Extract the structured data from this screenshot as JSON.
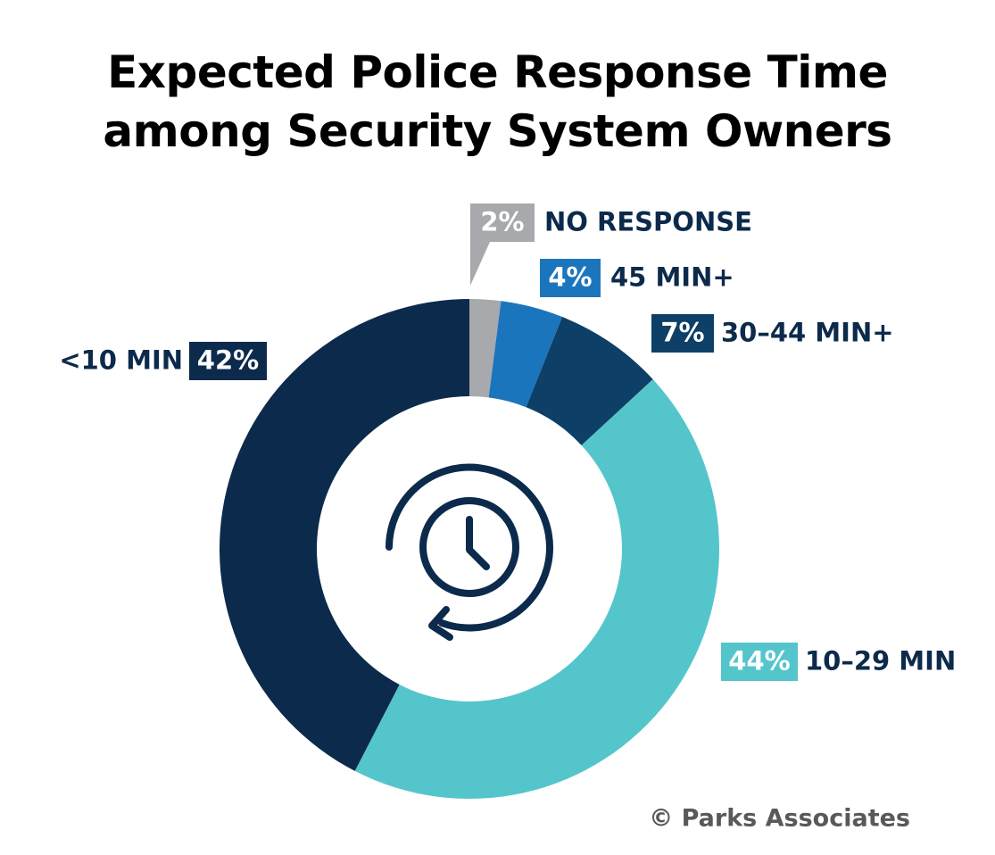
{
  "chart_data": {
    "type": "donut",
    "title": "Expected Police Response Time\namong Security System Owners",
    "categories": [
      "NO RESPONSE",
      "45 MIN+",
      "30–44 MIN+",
      "10–29 MIN",
      "<10 MIN"
    ],
    "values": [
      2,
      4,
      7,
      44,
      42
    ],
    "value_labels": [
      "2%",
      "4%",
      "7%",
      "44%",
      "42%"
    ],
    "colors": [
      "#a7a9ac",
      "#1b75bc",
      "#0e3f66",
      "#55c5cc",
      "#0c2a4b"
    ],
    "source": "© Parks Associates"
  }
}
